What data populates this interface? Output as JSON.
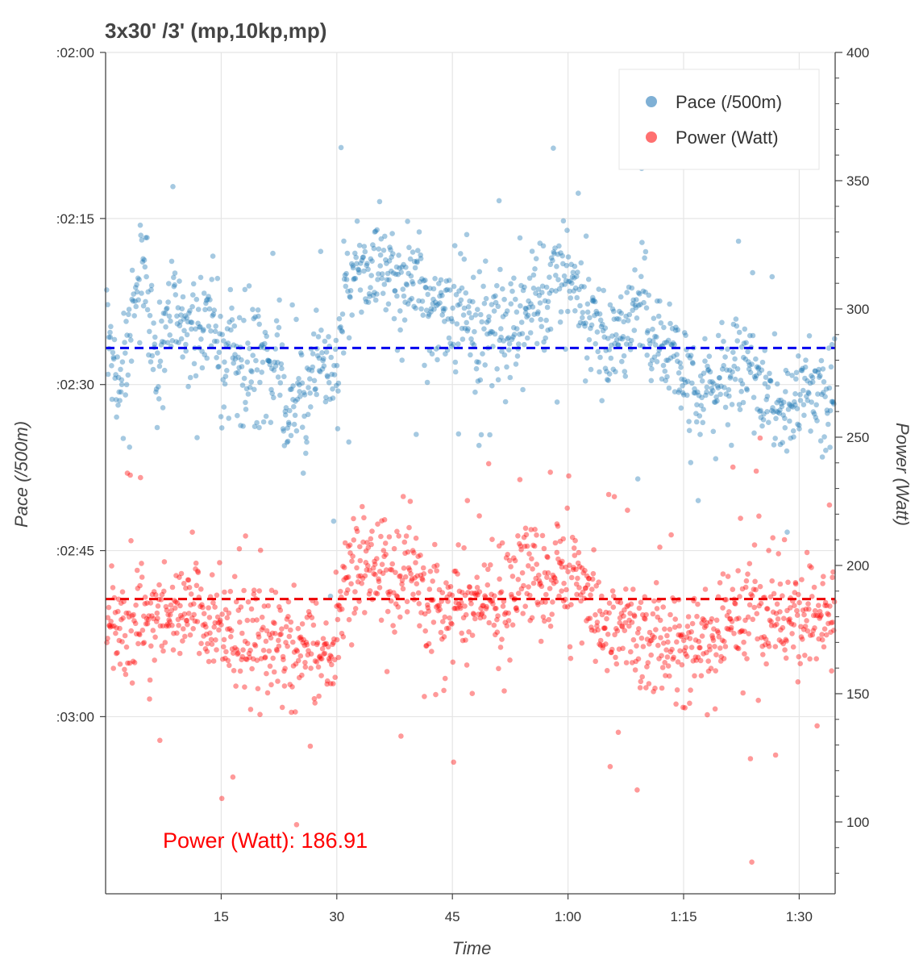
{
  "chart_data": {
    "type": "scatter",
    "title": "3x30' /3' (mp,10kp,mp)",
    "xlabel": "Time",
    "ylabel_left": "Pace (/500m)",
    "ylabel_right": "Power (Watt)",
    "x_unit": "seconds",
    "xlim": [
      0,
      5680
    ],
    "x_ticks": [
      {
        "value": 900,
        "label": "15"
      },
      {
        "value": 1800,
        "label": "30"
      },
      {
        "value": 2700,
        "label": "45"
      },
      {
        "value": 3600,
        "label": "1:00"
      },
      {
        "value": 4500,
        "label": "1:15"
      },
      {
        "value": 5400,
        "label": "1:30"
      }
    ],
    "y_left": {
      "unit": "seconds per 500m",
      "lim": [
        120,
        196
      ],
      "inverted": true,
      "ticks": [
        {
          "value": 120,
          "label": ":02:00"
        },
        {
          "value": 135,
          "label": ":02:15"
        },
        {
          "value": 150,
          "label": ":02:30"
        },
        {
          "value": 165,
          "label": ":02:45"
        },
        {
          "value": 180,
          "label": ":03:00"
        }
      ]
    },
    "y_right": {
      "lim": [
        72,
        400
      ],
      "ticks": [
        100,
        150,
        200,
        250,
        300,
        350,
        400
      ],
      "minor_step": 10
    },
    "grid": true,
    "legend": {
      "placement": "top-right",
      "entries": [
        {
          "name": "Pace (/500m)",
          "color": "#7fb0d5"
        },
        {
          "name": "Power (Watt)",
          "color": "#ff7070"
        }
      ]
    },
    "reference_lines": [
      {
        "axis": "left",
        "value": 146.7,
        "color": "#0000ee",
        "style": "dashed"
      },
      {
        "axis": "right",
        "value": 186.91,
        "color": "#ee0000",
        "style": "dashed"
      }
    ],
    "annotation": {
      "label": "Power (Watt): 186.91",
      "color": "#ff0000"
    },
    "series": [
      {
        "name": "Pace (/500m)",
        "axis": "left",
        "color": "#1f77b4",
        "profile": [
          [
            0,
            148
          ],
          [
            40,
            147
          ],
          [
            80,
            151
          ],
          [
            150,
            148
          ],
          [
            200,
            144
          ],
          [
            250,
            141
          ],
          [
            300,
            139
          ],
          [
            360,
            147
          ],
          [
            420,
            149
          ],
          [
            480,
            143
          ],
          [
            540,
            142
          ],
          [
            600,
            144
          ],
          [
            660,
            146
          ],
          [
            720,
            145
          ],
          [
            780,
            145
          ],
          [
            840,
            144
          ],
          [
            900,
            148
          ],
          [
            960,
            146
          ],
          [
            1020,
            147
          ],
          [
            1080,
            149
          ],
          [
            1140,
            148
          ],
          [
            1200,
            147
          ],
          [
            1260,
            148
          ],
          [
            1320,
            148
          ],
          [
            1380,
            151
          ],
          [
            1440,
            152
          ],
          [
            1500,
            151
          ],
          [
            1560,
            154
          ],
          [
            1620,
            148
          ],
          [
            1700,
            149
          ],
          [
            1790,
            150
          ],
          [
            1860,
            141
          ],
          [
            1920,
            139
          ],
          [
            1980,
            139
          ],
          [
            2040,
            140
          ],
          [
            2100,
            140
          ],
          [
            2160,
            140
          ],
          [
            2220,
            139
          ],
          [
            2280,
            140
          ],
          [
            2340,
            141
          ],
          [
            2400,
            140
          ],
          [
            2460,
            141
          ],
          [
            2520,
            143
          ],
          [
            2580,
            143
          ],
          [
            2640,
            144
          ],
          [
            2700,
            145
          ],
          [
            2760,
            144
          ],
          [
            2820,
            145
          ],
          [
            2880,
            144
          ],
          [
            2940,
            145
          ],
          [
            3000,
            145
          ],
          [
            3060,
            144
          ],
          [
            3120,
            145
          ],
          [
            3180,
            145
          ],
          [
            3240,
            143
          ],
          [
            3300,
            143
          ],
          [
            3360,
            142
          ],
          [
            3420,
            142
          ],
          [
            3480,
            140
          ],
          [
            3540,
            139
          ],
          [
            3600,
            140
          ],
          [
            3660,
            141
          ],
          [
            3720,
            143
          ],
          [
            3780,
            145
          ],
          [
            3840,
            145
          ],
          [
            3900,
            147
          ],
          [
            3960,
            146
          ],
          [
            4020,
            145
          ],
          [
            4080,
            145
          ],
          [
            4140,
            143
          ],
          [
            4200,
            143
          ],
          [
            4260,
            146
          ],
          [
            4320,
            147
          ],
          [
            4380,
            148
          ],
          [
            4440,
            147
          ],
          [
            4500,
            149
          ],
          [
            4560,
            150
          ],
          [
            4620,
            151
          ],
          [
            4680,
            150
          ],
          [
            4740,
            150
          ],
          [
            4800,
            149
          ],
          [
            4860,
            149
          ],
          [
            4920,
            147
          ],
          [
            4980,
            148
          ],
          [
            5040,
            149
          ],
          [
            5100,
            150
          ],
          [
            5160,
            151
          ],
          [
            5220,
            152
          ],
          [
            5280,
            153
          ],
          [
            5340,
            152
          ],
          [
            5400,
            151
          ],
          [
            5460,
            150
          ],
          [
            5520,
            150
          ],
          [
            5580,
            152
          ],
          [
            5680,
            149
          ]
        ]
      },
      {
        "name": "Power (Watt)",
        "axis": "right",
        "color": "#ff0000",
        "profile": [
          [
            0,
            180
          ],
          [
            60,
            176
          ],
          [
            150,
            173
          ],
          [
            240,
            182
          ],
          [
            330,
            178
          ],
          [
            420,
            180
          ],
          [
            480,
            174
          ],
          [
            540,
            180
          ],
          [
            600,
            181
          ],
          [
            660,
            184
          ],
          [
            720,
            180
          ],
          [
            780,
            178
          ],
          [
            840,
            173
          ],
          [
            900,
            178
          ],
          [
            960,
            174
          ],
          [
            1020,
            176
          ],
          [
            1080,
            172
          ],
          [
            1140,
            176
          ],
          [
            1200,
            174
          ],
          [
            1260,
            171
          ],
          [
            1320,
            173
          ],
          [
            1380,
            165
          ],
          [
            1440,
            170
          ],
          [
            1500,
            166
          ],
          [
            1560,
            168
          ],
          [
            1620,
            174
          ],
          [
            1680,
            166
          ],
          [
            1740,
            168
          ],
          [
            1790,
            166
          ],
          [
            1860,
            194
          ],
          [
            1920,
            196
          ],
          [
            1980,
            198
          ],
          [
            2040,
            196
          ],
          [
            2100,
            200
          ],
          [
            2160,
            196
          ],
          [
            2220,
            197
          ],
          [
            2280,
            194
          ],
          [
            2340,
            198
          ],
          [
            2400,
            196
          ],
          [
            2460,
            190
          ],
          [
            2520,
            184
          ],
          [
            2580,
            182
          ],
          [
            2640,
            184
          ],
          [
            2700,
            187
          ],
          [
            2760,
            183
          ],
          [
            2820,
            182
          ],
          [
            2880,
            186
          ],
          [
            2940,
            189
          ],
          [
            3000,
            188
          ],
          [
            3060,
            184
          ],
          [
            3120,
            188
          ],
          [
            3180,
            190
          ],
          [
            3240,
            196
          ],
          [
            3300,
            194
          ],
          [
            3360,
            196
          ],
          [
            3420,
            195
          ],
          [
            3480,
            194
          ],
          [
            3540,
            200
          ],
          [
            3600,
            197
          ],
          [
            3660,
            199
          ],
          [
            3720,
            190
          ],
          [
            3780,
            186
          ],
          [
            3840,
            180
          ],
          [
            3900,
            174
          ],
          [
            3960,
            172
          ],
          [
            4020,
            174
          ],
          [
            4080,
            175
          ],
          [
            4140,
            173
          ],
          [
            4200,
            170
          ],
          [
            4260,
            172
          ],
          [
            4320,
            170
          ],
          [
            4380,
            172
          ],
          [
            4440,
            171
          ],
          [
            4500,
            168
          ],
          [
            4560,
            170
          ],
          [
            4620,
            172
          ],
          [
            4680,
            170
          ],
          [
            4740,
            171
          ],
          [
            4800,
            173
          ],
          [
            4860,
            174
          ],
          [
            4920,
            178
          ],
          [
            4980,
            180
          ],
          [
            5040,
            182
          ],
          [
            5100,
            181
          ],
          [
            5160,
            183
          ],
          [
            5220,
            185
          ],
          [
            5280,
            182
          ],
          [
            5340,
            182
          ],
          [
            5400,
            180
          ],
          [
            5460,
            178
          ],
          [
            5520,
            182
          ],
          [
            5580,
            180
          ],
          [
            5680,
            180
          ]
        ]
      }
    ]
  }
}
